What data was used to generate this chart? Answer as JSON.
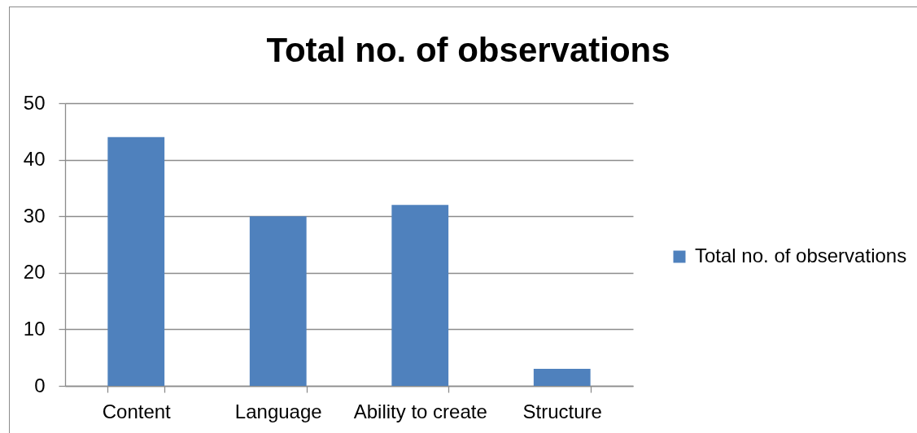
{
  "chart_data": {
    "type": "bar",
    "title": "Total no. of observations",
    "categories": [
      "Content",
      "Language",
      "Ability to create",
      "Structure"
    ],
    "series": [
      {
        "name": "Total no. of observations",
        "color": "#4f81bd",
        "values": [
          44,
          30,
          32,
          3
        ]
      }
    ],
    "ylim": [
      0,
      50
    ],
    "yticks": [
      0,
      10,
      20,
      30,
      40,
      50
    ],
    "grid": "y",
    "legend": "right"
  }
}
